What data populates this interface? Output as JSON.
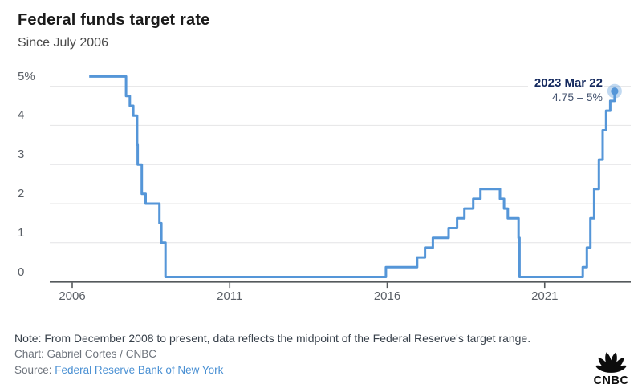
{
  "header": {
    "title": "Federal funds target rate",
    "subtitle": "Since July 2006"
  },
  "colors": {
    "line": "#5596d8",
    "dot": "#5596d8",
    "dot_halo": "rgba(91,154,217,0.38)",
    "gridline": "#e4e4e6",
    "axis": "#55595c",
    "axis_label": "#5a5f66",
    "annotation_date": "#14295e",
    "annotation_range": "#44536f",
    "source_link": "#4a90d3",
    "logo": "#0c0c0c"
  },
  "chart_data": {
    "type": "line",
    "step": true,
    "title": "Federal funds target rate",
    "subtitle": "Since July 2006",
    "xlabel": "",
    "ylabel": "",
    "unit": "percent",
    "grid": "horizontal",
    "legend": "none",
    "xlim": [
      2005.29,
      2023.73
    ],
    "ylim": [
      0,
      5.45
    ],
    "yticks": [
      "5%",
      "4",
      "3",
      "2",
      "1",
      "0"
    ],
    "ytick_values": [
      5,
      4,
      3,
      2,
      1,
      0
    ],
    "xticks": [
      "2006",
      "2011",
      "2016",
      "2021"
    ],
    "xtick_values": [
      2006,
      2011,
      2016,
      2021
    ],
    "series": [
      {
        "name": "Federal funds target rate (midpoint)",
        "points": [
          [
            2006.54,
            5.25
          ],
          [
            2007.71,
            4.75
          ],
          [
            2007.83,
            4.5
          ],
          [
            2007.94,
            4.25
          ],
          [
            2008.06,
            3.5
          ],
          [
            2008.08,
            3.0
          ],
          [
            2008.21,
            2.25
          ],
          [
            2008.33,
            2.0
          ],
          [
            2008.77,
            1.5
          ],
          [
            2008.83,
            1.0
          ],
          [
            2008.96,
            0.125
          ],
          [
            2015.96,
            0.375
          ],
          [
            2016.95,
            0.625
          ],
          [
            2017.2,
            0.875
          ],
          [
            2017.45,
            1.125
          ],
          [
            2017.95,
            1.375
          ],
          [
            2018.22,
            1.625
          ],
          [
            2018.45,
            1.875
          ],
          [
            2018.73,
            2.125
          ],
          [
            2018.96,
            2.375
          ],
          [
            2019.58,
            2.125
          ],
          [
            2019.71,
            1.875
          ],
          [
            2019.83,
            1.625
          ],
          [
            2020.17,
            1.125
          ],
          [
            2020.2,
            0.125
          ],
          [
            2022.21,
            0.375
          ],
          [
            2022.34,
            0.875
          ],
          [
            2022.45,
            1.625
          ],
          [
            2022.57,
            2.375
          ],
          [
            2022.72,
            3.125
          ],
          [
            2022.84,
            3.875
          ],
          [
            2022.95,
            4.375
          ],
          [
            2023.08,
            4.625
          ],
          [
            2023.22,
            4.875
          ]
        ]
      }
    ],
    "annotation": {
      "date": "2023 Mar 22",
      "range": "4.75 – 5%",
      "value_mid": 4.875
    }
  },
  "footer": {
    "note": "Note: From December 2008 to present, data reflects the midpoint of the Federal Reserve's target range.",
    "credit": "Chart: Gabriel Cortes / CNBC",
    "source_label": "Source:",
    "source_link": "Federal Reserve Bank of New York",
    "logo_icon": "cnbc-peacock-logo",
    "logo_text": "CNBC"
  }
}
